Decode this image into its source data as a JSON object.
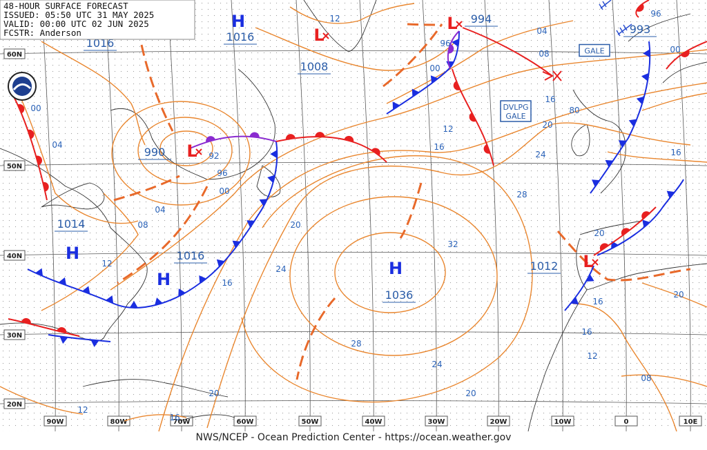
{
  "header": {
    "lines": [
      "48-HOUR SURFACE FORECAST",
      "ISSUED: 05:50 UTC 31 MAY 2025",
      "VALID:  00:00 UTC 02 JUN 2025",
      "FCSTR:  Anderson"
    ]
  },
  "footer": "NWS/NCEP - Ocean Prediction Center - https://ocean.weather.gov",
  "lat_labels": [
    "60N",
    "50N",
    "40N",
    "30N",
    "20N"
  ],
  "lon_labels": [
    "90W",
    "80W",
    "70W",
    "60W",
    "50W",
    "40W",
    "30W",
    "20W",
    "10W",
    "0",
    "10E"
  ],
  "centers": [
    {
      "symbol": "H",
      "pressure": 1016
    },
    {
      "symbol": "L",
      "pressure": 1008
    },
    {
      "symbol": "L",
      "pressure": 990
    },
    {
      "symbol": "H",
      "pressure": 1014
    },
    {
      "symbol": "H",
      "pressure": 1016
    },
    {
      "symbol": "H",
      "pressure": 1036
    },
    {
      "symbol": "L",
      "pressure": 994
    },
    {
      "pressure": 993
    },
    {
      "symbol": "L",
      "pressure": 1012
    },
    {
      "pressure": 1016
    }
  ],
  "isobar_labels": [
    "12",
    "04",
    "08",
    "00",
    "96",
    "00",
    "04",
    "92",
    "96",
    "00",
    "04",
    "08",
    "12",
    "16",
    "20",
    "24",
    "28",
    "24",
    "20",
    "20",
    "16",
    "12",
    "32",
    "28",
    "24",
    "20",
    "16",
    "16",
    "12",
    "96",
    "00",
    "16",
    "20",
    "16",
    "16",
    "12",
    "08",
    "20",
    "80"
  ],
  "annotations": [
    {
      "lines": [
        "GALE"
      ]
    },
    {
      "lines": [
        "DVLPG",
        "GALE"
      ]
    }
  ]
}
